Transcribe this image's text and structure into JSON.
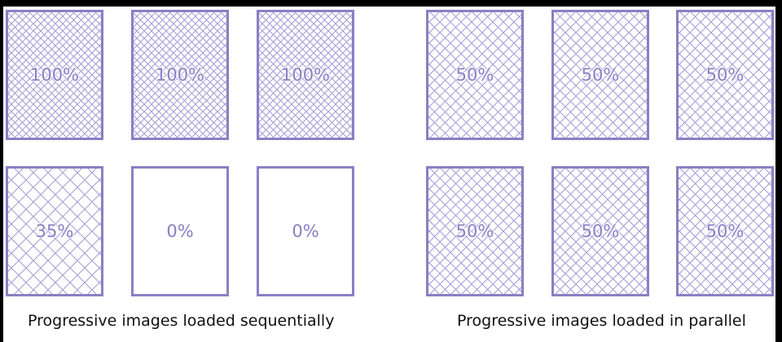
{
  "left_group": {
    "caption": "Progressive images loaded sequentially",
    "cards": [
      {
        "percent_label": "100%",
        "load_fraction": 1.0
      },
      {
        "percent_label": "100%",
        "load_fraction": 1.0
      },
      {
        "percent_label": "100%",
        "load_fraction": 1.0
      },
      {
        "percent_label": "35%",
        "load_fraction": 0.35
      },
      {
        "percent_label": "0%",
        "load_fraction": 0.0
      },
      {
        "percent_label": "0%",
        "load_fraction": 0.0
      }
    ]
  },
  "right_group": {
    "caption": "Progressive images loaded in parallel",
    "cards": [
      {
        "percent_label": "50%",
        "load_fraction": 0.5
      },
      {
        "percent_label": "50%",
        "load_fraction": 0.5
      },
      {
        "percent_label": "50%",
        "load_fraction": 0.5
      },
      {
        "percent_label": "50%",
        "load_fraction": 0.5
      },
      {
        "percent_label": "50%",
        "load_fraction": 0.5
      },
      {
        "percent_label": "50%",
        "load_fraction": 0.5
      }
    ]
  },
  "colors": {
    "accent": "#8a7fc4",
    "hatch": "#a59bd6"
  }
}
